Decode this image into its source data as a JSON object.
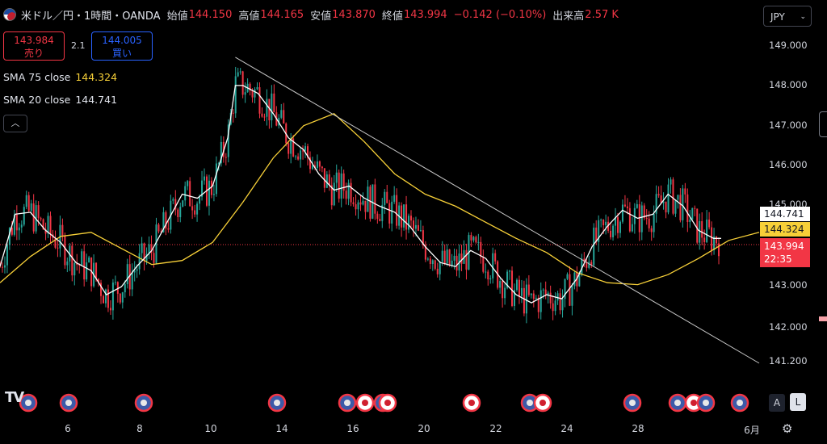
{
  "header": {
    "title": "米ドル／円・1時間・OANDA",
    "open_label": "始値",
    "open": "144.150",
    "high_label": "高値",
    "high": "144.165",
    "low_label": "安値",
    "low": "143.870",
    "close_label": "終値",
    "close": "143.994",
    "change": "−0.142 (−0.10%)",
    "volume_label": "出来高",
    "volume": "2.57 K"
  },
  "trade": {
    "sell_price": "143.984",
    "sell_label": "売り",
    "spread": "2.1",
    "buy_price": "144.005",
    "buy_label": "買い"
  },
  "indicators": [
    {
      "name": "SMA 75 close",
      "value": "144.324",
      "color": "#f7d038"
    },
    {
      "name": "SMA 20 close",
      "value": "144.741",
      "color": "#ffffff"
    }
  ],
  "currency": "JPY",
  "y_ticks": [
    "149.000",
    "148.000",
    "147.000",
    "146.000",
    "145.000",
    "143.000",
    "142.000",
    "141.200"
  ],
  "price_tags": {
    "sma20": "144.741",
    "sma75": "144.324",
    "last": "143.994",
    "countdown": "22:35"
  },
  "x_ticks": [
    "6",
    "8",
    "10",
    "14",
    "16",
    "20",
    "22",
    "24",
    "28",
    "6月"
  ],
  "controls": {
    "auto": "A",
    "log": "L"
  },
  "colors": {
    "up": "#26a69a",
    "down": "#f23645",
    "sma75": "#f7d038",
    "sma20": "#ffffff",
    "trendline": "#c8c8c8"
  },
  "chart_data": {
    "type": "line",
    "series": [
      {
        "name": "SMA 75 close",
        "x": [
          0,
          4,
          8,
          12,
          16,
          20,
          24,
          28,
          32,
          36,
          40,
          44,
          48,
          52,
          56,
          60,
          64,
          68,
          72,
          76,
          80,
          84,
          88,
          92,
          96,
          100
        ],
        "y": [
          143.1,
          143.75,
          144.25,
          144.35,
          143.95,
          143.55,
          143.65,
          144.1,
          145.1,
          146.2,
          147.0,
          147.3,
          146.6,
          145.8,
          145.3,
          145.0,
          144.6,
          144.2,
          143.85,
          143.35,
          143.1,
          143.05,
          143.3,
          143.7,
          144.15,
          144.35
        ]
      },
      {
        "name": "SMA 20 close",
        "x": [
          0,
          2,
          4,
          6,
          8,
          10,
          12,
          14,
          16,
          18,
          20,
          22,
          24,
          26,
          28,
          30,
          31,
          32,
          34,
          36,
          38,
          40,
          42,
          44,
          46,
          48,
          50,
          52,
          54,
          56,
          58,
          60,
          62,
          64,
          66,
          68,
          70,
          72,
          74,
          76,
          78,
          80,
          82,
          84,
          86,
          88,
          90,
          92,
          94,
          95
        ],
        "y": [
          143.5,
          144.8,
          144.85,
          144.4,
          144.1,
          143.6,
          143.4,
          142.8,
          143.0,
          143.5,
          143.9,
          144.6,
          145.3,
          145.2,
          145.5,
          146.7,
          148.0,
          148.0,
          147.8,
          147.3,
          146.7,
          146.4,
          145.8,
          145.4,
          145.5,
          145.2,
          145.0,
          144.85,
          144.5,
          144.0,
          143.6,
          143.5,
          143.9,
          143.7,
          143.2,
          142.8,
          142.6,
          142.8,
          142.7,
          143.2,
          144.0,
          144.5,
          144.9,
          144.7,
          144.8,
          145.3,
          145.0,
          144.4,
          144.2,
          144.2
        ]
      }
    ],
    "trendline": {
      "from": [
        31,
        148.7
      ],
      "to": [
        100,
        141.1
      ]
    },
    "ylim": [
      140.5,
      149.5
    ]
  }
}
